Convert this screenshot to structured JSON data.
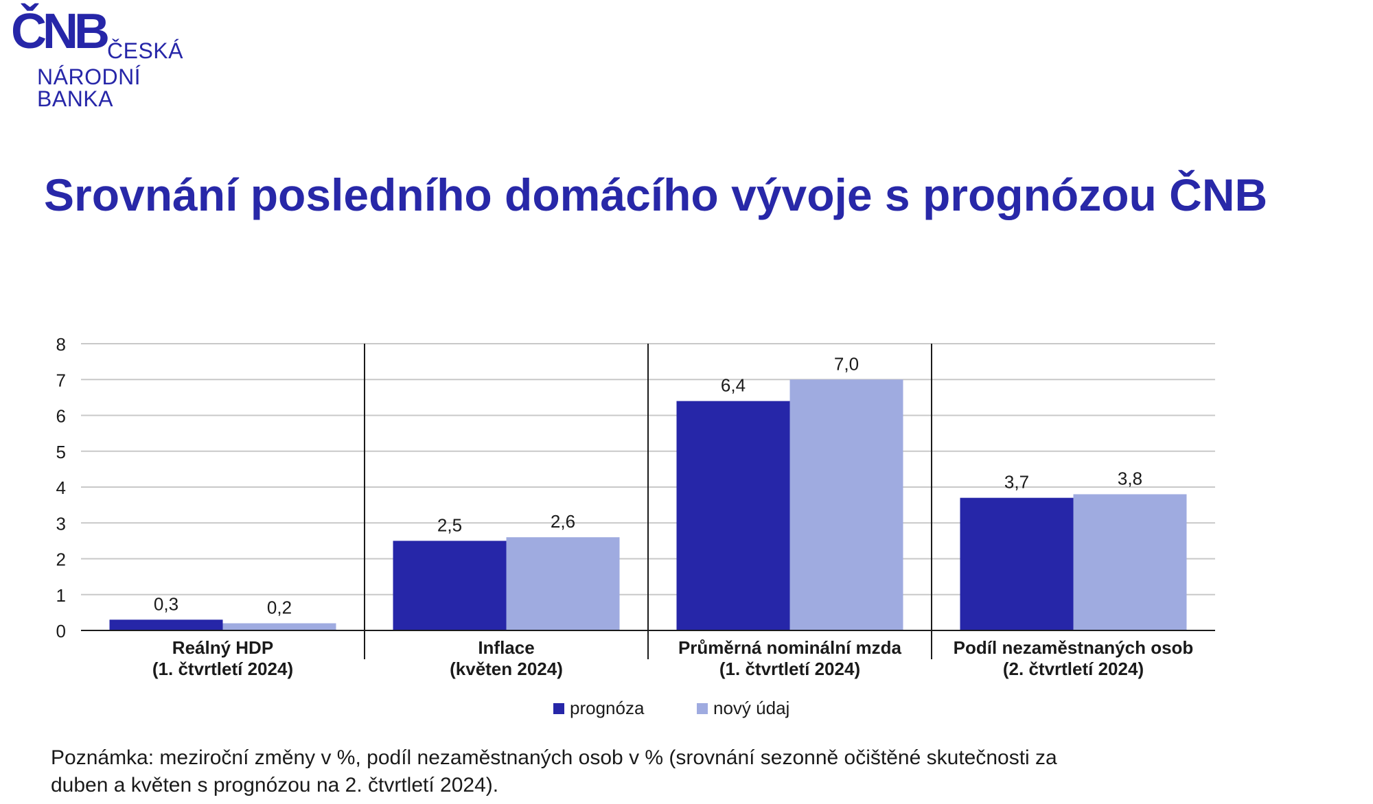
{
  "logo": {
    "mark": "ČNB",
    "line1": "ČESKÁ",
    "line2": "NÁRODNÍ",
    "line3": "BANKA"
  },
  "title": "Srovnání posledního domácího vývoje s prognózou ČNB",
  "chart_data": {
    "type": "bar",
    "categories": [
      [
        "Reálný HDP",
        "(1. čtvrtletí 2024)"
      ],
      [
        "Inflace",
        "(květen 2024)"
      ],
      [
        "Průměrná nominální mzda",
        "(1. čtvrtletí 2024)"
      ],
      [
        "Podíl nezaměstnaných osob",
        "(2. čtvrtletí 2024)"
      ]
    ],
    "series": [
      {
        "name": "prognóza",
        "values": [
          0.3,
          2.5,
          6.4,
          3.7
        ],
        "labels": [
          "0,3",
          "2,5",
          "6,4",
          "3,7"
        ],
        "color": "#2626a8"
      },
      {
        "name": "nový údaj",
        "values": [
          0.2,
          2.6,
          7.0,
          3.8
        ],
        "labels": [
          "0,2",
          "2,6",
          "7,0",
          "3,8"
        ],
        "color": "#9fabe0"
      }
    ],
    "ylim": [
      0,
      8
    ],
    "yticks": [
      "0",
      "1",
      "2",
      "3",
      "4",
      "5",
      "6",
      "7",
      "8"
    ],
    "grid": true,
    "legend_position": "bottom-center",
    "gridline_color": "#c8c8c8"
  },
  "note": {
    "line1": "Poznámka: meziroční změny v %, podíl nezaměstnaných osob v % (srovnání sezonně očištěné skutečnosti za",
    "line2": "duben a květen s prognózou na 2. čtvrtletí 2024)."
  }
}
